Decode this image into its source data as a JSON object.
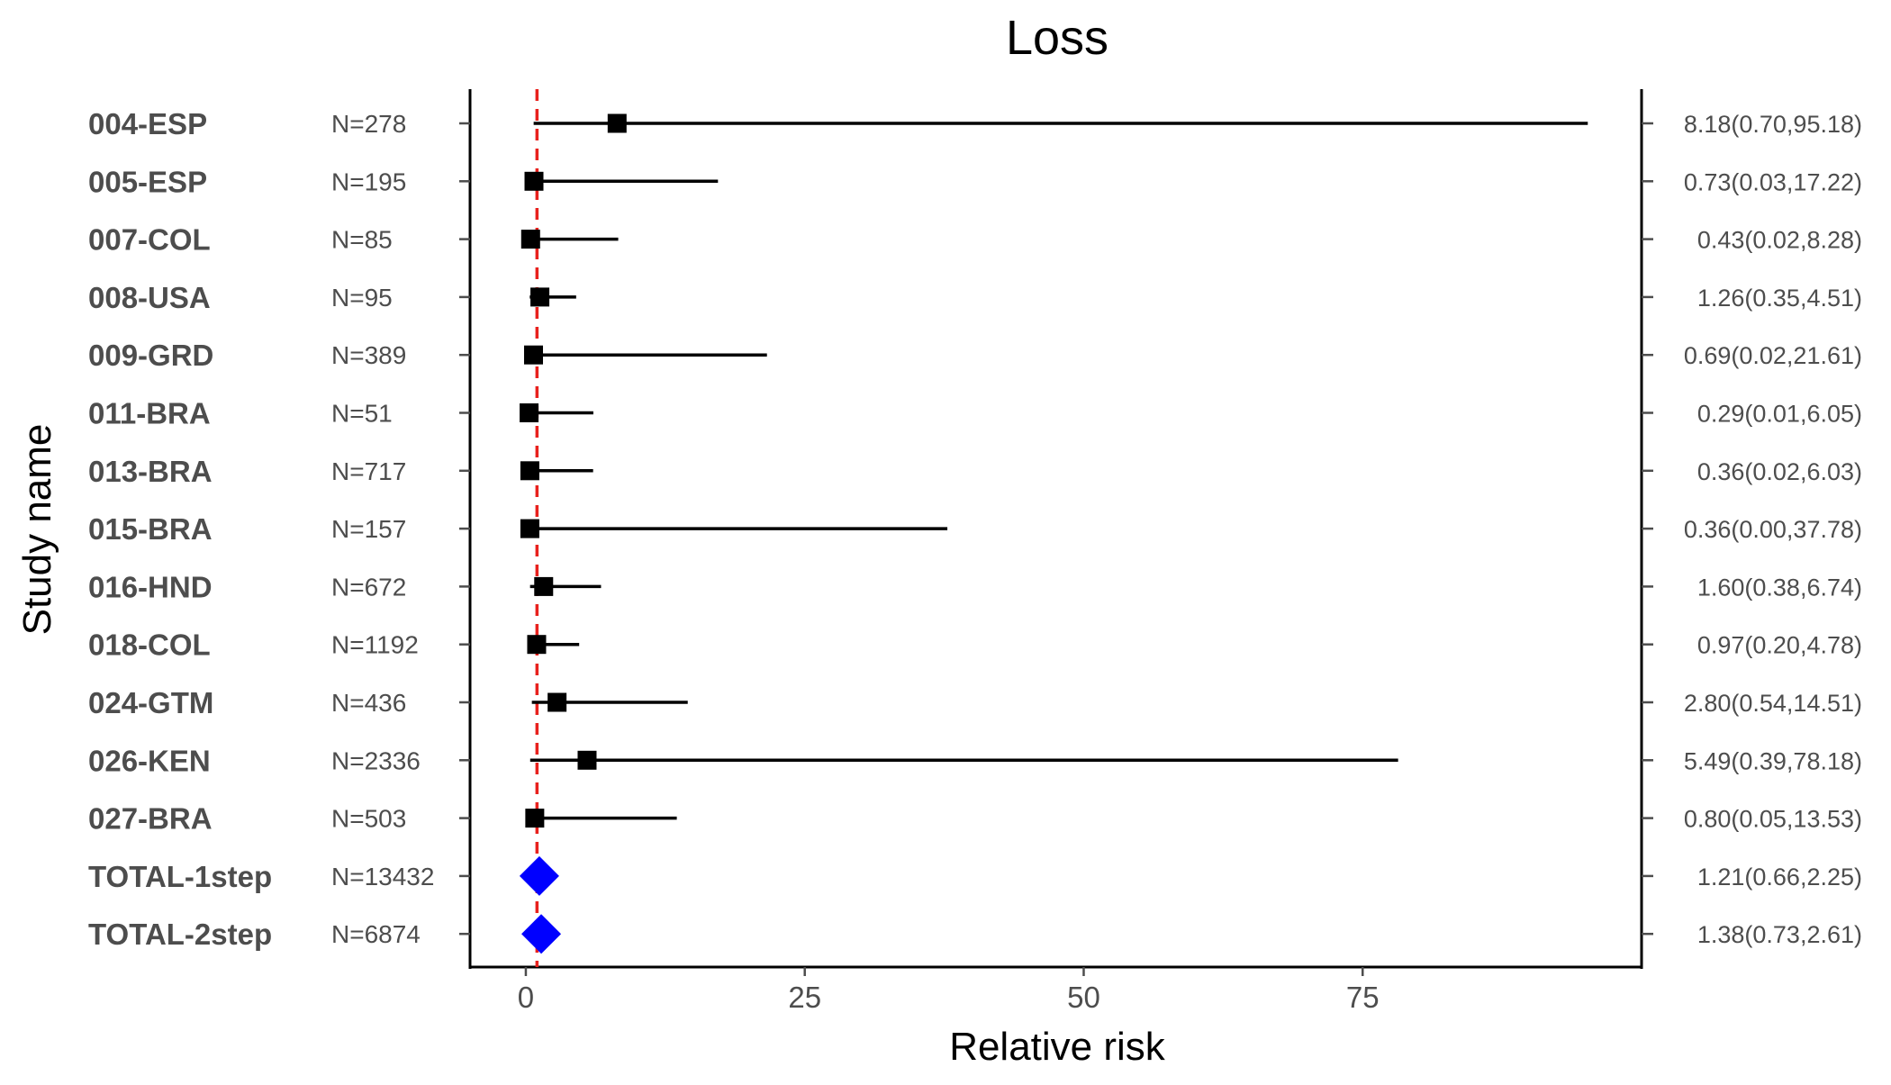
{
  "chart_data": {
    "type": "forest",
    "title": "Loss",
    "xlabel": "Relative risk",
    "ylabel": "Study name",
    "xlim": [
      -5,
      100
    ],
    "x_ticks": [
      0,
      25,
      50,
      75
    ],
    "x_tick_labels": [
      "0",
      "25",
      "50",
      "75"
    ],
    "reference_line": {
      "x": 1,
      "color": "#e8211d",
      "style": "dashed"
    },
    "grid": false,
    "legend": "none",
    "marker_color_study": "#000000",
    "marker_color_total": "#0000ff",
    "studies": [
      {
        "name": "004-ESP",
        "n_label": "N=278",
        "rr": 8.18,
        "lower": 0.7,
        "upper": 95.18,
        "ci_label": "8.18(0.70,95.18)",
        "marker": "square"
      },
      {
        "name": "005-ESP",
        "n_label": "N=195",
        "rr": 0.73,
        "lower": 0.03,
        "upper": 17.22,
        "ci_label": "0.73(0.03,17.22)",
        "marker": "square"
      },
      {
        "name": "007-COL",
        "n_label": "N=85",
        "rr": 0.43,
        "lower": 0.02,
        "upper": 8.28,
        "ci_label": "0.43(0.02,8.28)",
        "marker": "square"
      },
      {
        "name": "008-USA",
        "n_label": "N=95",
        "rr": 1.26,
        "lower": 0.35,
        "upper": 4.51,
        "ci_label": "1.26(0.35,4.51)",
        "marker": "square"
      },
      {
        "name": "009-GRD",
        "n_label": "N=389",
        "rr": 0.69,
        "lower": 0.02,
        "upper": 21.61,
        "ci_label": "0.69(0.02,21.61)",
        "marker": "square"
      },
      {
        "name": "011-BRA",
        "n_label": "N=51",
        "rr": 0.29,
        "lower": 0.01,
        "upper": 6.05,
        "ci_label": "0.29(0.01,6.05)",
        "marker": "square"
      },
      {
        "name": "013-BRA",
        "n_label": "N=717",
        "rr": 0.36,
        "lower": 0.02,
        "upper": 6.03,
        "ci_label": "0.36(0.02,6.03)",
        "marker": "square"
      },
      {
        "name": "015-BRA",
        "n_label": "N=157",
        "rr": 0.36,
        "lower": 0.0,
        "upper": 37.78,
        "ci_label": "0.36(0.00,37.78)",
        "marker": "square"
      },
      {
        "name": "016-HND",
        "n_label": "N=672",
        "rr": 1.6,
        "lower": 0.38,
        "upper": 6.74,
        "ci_label": "1.60(0.38,6.74)",
        "marker": "square"
      },
      {
        "name": "018-COL",
        "n_label": "N=1192",
        "rr": 0.97,
        "lower": 0.2,
        "upper": 4.78,
        "ci_label": "0.97(0.20,4.78)",
        "marker": "square"
      },
      {
        "name": "024-GTM",
        "n_label": "N=436",
        "rr": 2.8,
        "lower": 0.54,
        "upper": 14.51,
        "ci_label": "2.80(0.54,14.51)",
        "marker": "square"
      },
      {
        "name": "026-KEN",
        "n_label": "N=2336",
        "rr": 5.49,
        "lower": 0.39,
        "upper": 78.18,
        "ci_label": "5.49(0.39,78.18)",
        "marker": "square"
      },
      {
        "name": "027-BRA",
        "n_label": "N=503",
        "rr": 0.8,
        "lower": 0.05,
        "upper": 13.53,
        "ci_label": "0.80(0.05,13.53)",
        "marker": "square"
      },
      {
        "name": "TOTAL-1step",
        "n_label": "N=13432",
        "rr": 1.21,
        "lower": 0.66,
        "upper": 2.25,
        "ci_label": "1.21(0.66,2.25)",
        "marker": "diamond"
      },
      {
        "name": "TOTAL-2step",
        "n_label": "N=6874",
        "rr": 1.38,
        "lower": 0.73,
        "upper": 2.61,
        "ci_label": "1.38(0.73,2.61)",
        "marker": "diamond"
      }
    ]
  }
}
